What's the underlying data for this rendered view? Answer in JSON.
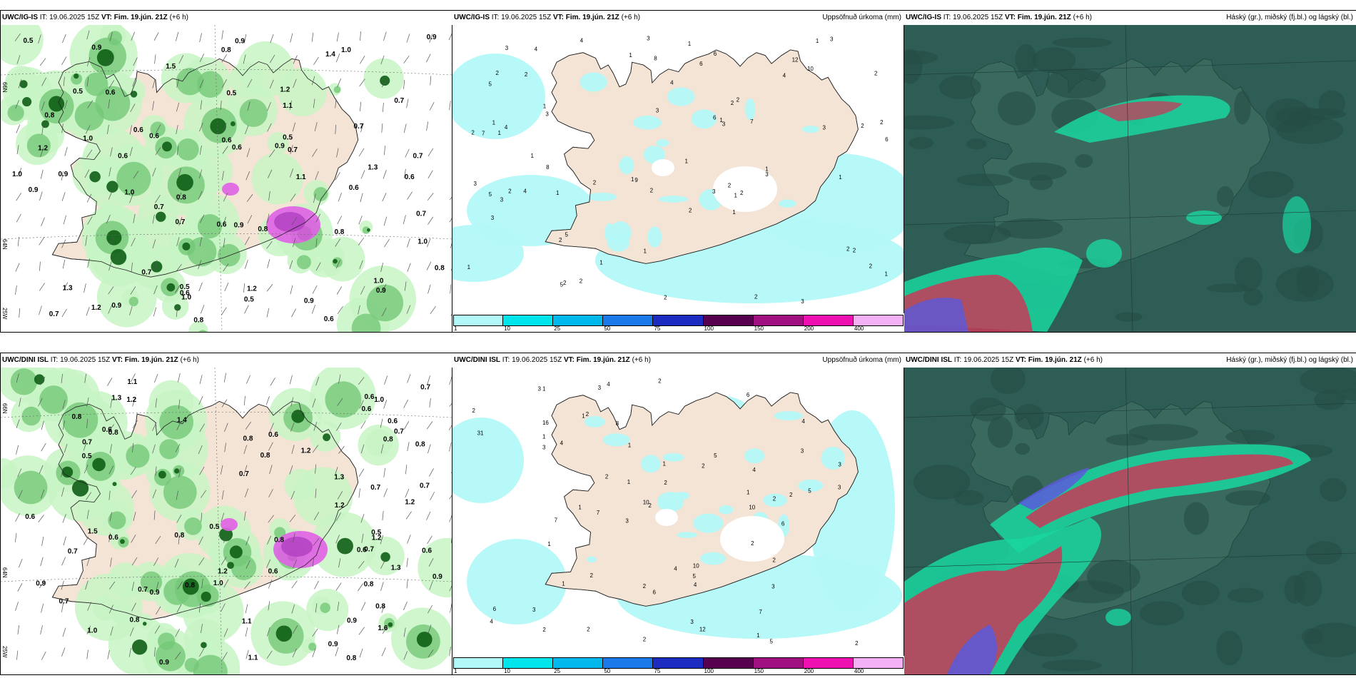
{
  "rows": [
    {
      "id": "igis",
      "panels": [
        {
          "kind": "precip-fields",
          "model": "UWC/IG-IS",
          "it_label": "IT:",
          "it_value": "19.06.2025 15Z",
          "vt_label": "VT:",
          "vt_value": "Fim. 19.jún. 21Z",
          "lead": "(+6 h)",
          "right_title": "",
          "values": [
            "0.6",
            "0.5",
            "0.7",
            "0.5",
            "0.6",
            "0.7",
            "0.6",
            "0.9",
            "1.2",
            "0.8",
            "0.7",
            "0.9",
            "1.2",
            "0.6",
            "1.0",
            "0.6",
            "0.9",
            "0.5",
            "0.7",
            "0.7",
            "0.9",
            "0.8",
            "1.0",
            "0.8",
            "0.7",
            "0.5",
            "0.6",
            "0.8",
            "1.3",
            "1.0",
            "0.9",
            "0.7",
            "0.9",
            "0.5",
            "1.0",
            "0.8",
            "0.6",
            "1.0",
            "1.1",
            "1.4",
            "0.6",
            "0.7",
            "0.9",
            "0.8",
            "1.0",
            "1.3",
            "0.5",
            "0.6",
            "0.8",
            "1.0",
            "1.2",
            "0.9",
            "0.7",
            "1.1",
            "0.9",
            "0.6",
            "1.5",
            "0.6",
            "1.2",
            "0.9"
          ]
        },
        {
          "kind": "accum",
          "model": "UWC/IG-IS",
          "it_label": "IT:",
          "it_value": "19.06.2025 15Z",
          "vt_label": "VT:",
          "vt_value": "Fim. 19.jún. 21Z",
          "lead": "(+6 h)",
          "right_title": "Uppsöfnuð úrkoma (mm)",
          "points": [
            "2",
            "2",
            "1",
            "3",
            "2",
            "1",
            "2",
            "2",
            "1",
            "1",
            "2",
            "4",
            "2",
            "3",
            "1",
            "2",
            "3",
            "1",
            "1",
            "3",
            "2",
            "4",
            "6",
            "10",
            "3",
            "2",
            "1",
            "2",
            "1",
            "1",
            "2",
            "1",
            "4",
            "1",
            "3",
            "3",
            "2",
            "2",
            "1",
            "4",
            "3",
            "1",
            "2",
            "12",
            "8",
            "5",
            "3",
            "1",
            "2",
            "5",
            "3",
            "2",
            "5",
            "6",
            "9",
            "6",
            "4",
            "7",
            "2",
            "3",
            "1",
            "2",
            "5",
            "8",
            "6",
            "7",
            "1",
            "2",
            "2",
            "2",
            "3",
            "1",
            "3",
            "4",
            "1"
          ]
        },
        {
          "kind": "cloud",
          "model": "UWC/IG-IS",
          "it_label": "IT:",
          "it_value": "19.06.2025 15Z",
          "vt_label": "VT:",
          "vt_value": "Fim. 19.jún. 21Z",
          "lead": "(+6 h)",
          "right_title": "Háský (gr.), miðský (fj.bl.) og lágský (bl.)"
        }
      ]
    },
    {
      "id": "dini",
      "panels": [
        {
          "kind": "precip-fields",
          "model": "UWC/DINI ISL",
          "it_label": "IT:",
          "it_value": "19.06.2025 15Z",
          "vt_label": "VT:",
          "vt_value": "Fim. 19.jún. 21Z",
          "lead": "(+6 h)",
          "right_title": "",
          "values": [
            "0.7",
            "0.8",
            "0.6",
            "0.6",
            "0.7",
            "0.5",
            "0.8",
            "1.1",
            "0.8",
            "0.7",
            "0.6",
            "0.9",
            "1.2",
            "0.8",
            "0.7",
            "1.2",
            "0.9",
            "0.5",
            "0.6",
            "0.7",
            "0.8",
            "1.3",
            "0.6",
            "0.8",
            "0.7",
            "1.0",
            "0.8",
            "0.6",
            "1.2",
            "1.4",
            "0.9",
            "0.7",
            "0.5",
            "0.8",
            "1.0",
            "0.6",
            "0.8",
            "1.1",
            "1.6",
            "1.2",
            "0.9",
            "0.7",
            "0.6",
            "1.3",
            "0.8",
            "1.0",
            "0.7",
            "0.9",
            "1.2",
            "0.8",
            "0.6",
            "1.1",
            "0.7",
            "0.8",
            "1.2",
            "1.5",
            "0.6",
            "0.9",
            "1.3",
            "0.8"
          ]
        },
        {
          "kind": "accum",
          "model": "UWC/DINI ISL",
          "it_label": "IT:",
          "it_value": "19.06.2025 15Z",
          "vt_label": "VT:",
          "vt_value": "Fim. 19.jún. 21Z",
          "lead": "(+6 h)",
          "right_title": "Uppsöfnuð úrkoma (mm)",
          "points": [
            "4",
            "2",
            "2",
            "4",
            "3",
            "1",
            "2",
            "1",
            "1",
            "1",
            "2",
            "1",
            "2",
            "7",
            "10",
            "6",
            "4",
            "31",
            "16",
            "2",
            "3",
            "4",
            "2",
            "2",
            "1",
            "2",
            "3",
            "1",
            "2",
            "4",
            "3",
            "6",
            "8",
            "3",
            "2",
            "3",
            "1",
            "3",
            "2",
            "5",
            "10",
            "6",
            "5",
            "7",
            "4",
            "2",
            "2",
            "3",
            "5",
            "3",
            "1",
            "2",
            "10",
            "12",
            "6",
            "7",
            "5",
            "1",
            "2",
            "4",
            "3",
            "2",
            "1"
          ]
        },
        {
          "kind": "cloud",
          "model": "UWC/DINI ISL",
          "it_label": "IT:",
          "it_value": "19.06.2025 15Z",
          "vt_label": "VT:",
          "vt_value": "Fim. 19.jún. 21Z",
          "lead": "(+6 h)",
          "right_title": "Háský (gr.), miðský (fj.bl.) og lágský (bl.)"
        }
      ]
    }
  ],
  "axis_labels": [
    "66N",
    "64N",
    "25W"
  ],
  "colorbar": {
    "labels": [
      "1",
      "10",
      "25",
      "50",
      "75",
      "100",
      "150",
      "200",
      "400"
    ],
    "colors": [
      "#b3f8f8",
      "#00e4ec",
      "#00b8ec",
      "#1a78e8",
      "#1c2cc0",
      "#580050",
      "#a01080",
      "#ee10b0",
      "#f4b0f4"
    ]
  },
  "colors": {
    "land": "#f3e4d6",
    "precip_light": "#c8f5c4",
    "precip_mid": "#74c878",
    "precip_dark": "#0e5e16",
    "precip_magenta": "#e060e6",
    "accum_light": "#b3f8f8",
    "cloud_bg": "#2d5d55",
    "cloud_low": "#1ad6a0",
    "cloud_high": "#c83a58",
    "cloud_mid": "#5a5adc"
  }
}
